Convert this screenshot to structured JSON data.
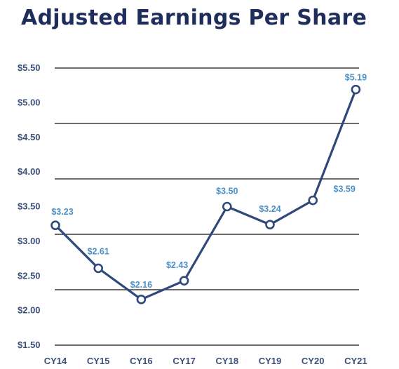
{
  "chart_data": {
    "type": "line",
    "title": "Adjusted Earnings Per Share",
    "categories": [
      "CY14",
      "CY15",
      "CY16",
      "CY17",
      "CY18",
      "CY19",
      "CY20",
      "CY21"
    ],
    "series": [
      {
        "values": [
          3.23,
          2.61,
          2.16,
          2.43,
          3.5,
          3.24,
          3.59,
          5.19
        ],
        "labels": [
          "$3.23",
          "$2.61",
          "$2.16",
          "$2.43",
          "$3.50",
          "$3.24",
          "$3.59",
          "$5.19"
        ]
      }
    ],
    "yticks": [
      1.5,
      2.0,
      2.5,
      3.0,
      3.5,
      4.0,
      4.5,
      5.0,
      5.5
    ],
    "ytick_labels": [
      "$1.50",
      "$2.00",
      "$2.50",
      "$3.00",
      "$3.50",
      "$4.00",
      "$4.50",
      "$5.00",
      "$5.50"
    ],
    "ylim": [
      1.5,
      5.5
    ],
    "gridlines": [
      1.5,
      2.3,
      3.1,
      3.9,
      4.7,
      5.5
    ],
    "xlabel": "",
    "ylabel": "",
    "grid": true,
    "legend": "none",
    "colors": {
      "title": "#1f2d5c",
      "line": "#2f4a7a",
      "marker_fill": "#ffffff",
      "grid": "#3a3a3a",
      "tick": "#3a4f7a",
      "data_label": "#4a90c8"
    }
  }
}
